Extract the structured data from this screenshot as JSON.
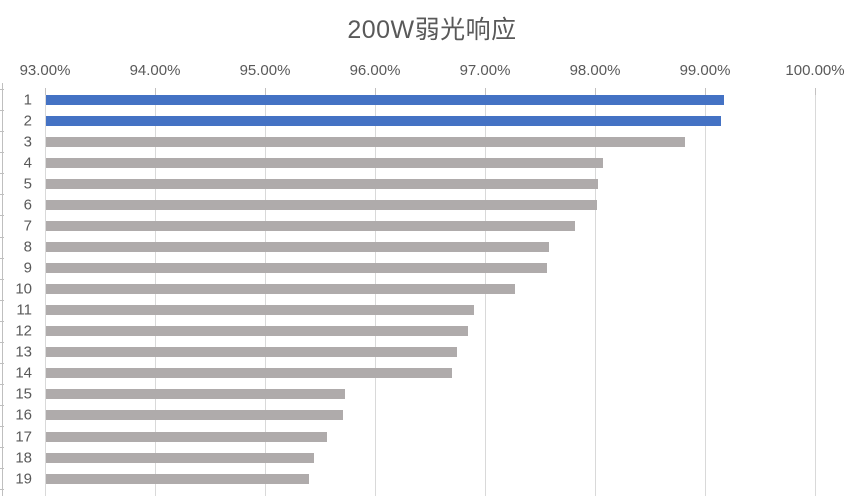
{
  "chart_data": {
    "type": "bar",
    "orientation": "horizontal",
    "title": "200W弱光响应",
    "categories": [
      "1",
      "2",
      "3",
      "4",
      "5",
      "6",
      "7",
      "8",
      "9",
      "10",
      "11",
      "12",
      "13",
      "14",
      "15",
      "16",
      "17",
      "18",
      "19"
    ],
    "values": [
      99.18,
      99.15,
      98.82,
      98.08,
      98.03,
      98.02,
      97.82,
      97.59,
      97.57,
      97.28,
      96.9,
      96.85,
      96.75,
      96.7,
      95.73,
      95.71,
      95.57,
      95.45,
      95.4
    ],
    "value_unit": "%",
    "xlim": [
      93,
      100
    ],
    "x_tick_values": [
      93,
      94,
      95,
      96,
      97,
      98,
      99,
      100
    ],
    "x_tick_labels": [
      "93.00%",
      "94.00%",
      "95.00%",
      "96.00%",
      "97.00%",
      "98.00%",
      "99.00%",
      "100.00%"
    ],
    "x_axis_position": "top",
    "legend": "none",
    "grid": "vertical",
    "sort_order": "descending",
    "highlighted_indices": [
      0,
      1
    ],
    "colors": {
      "bar_highlight": "#4472C4",
      "bar_default": "#AFABAB",
      "gridline": "#D9D9D9",
      "axis_line": "#BFBFBF",
      "label_text": "#595959",
      "title_text": "#595959",
      "background": "#FFFFFF"
    }
  }
}
